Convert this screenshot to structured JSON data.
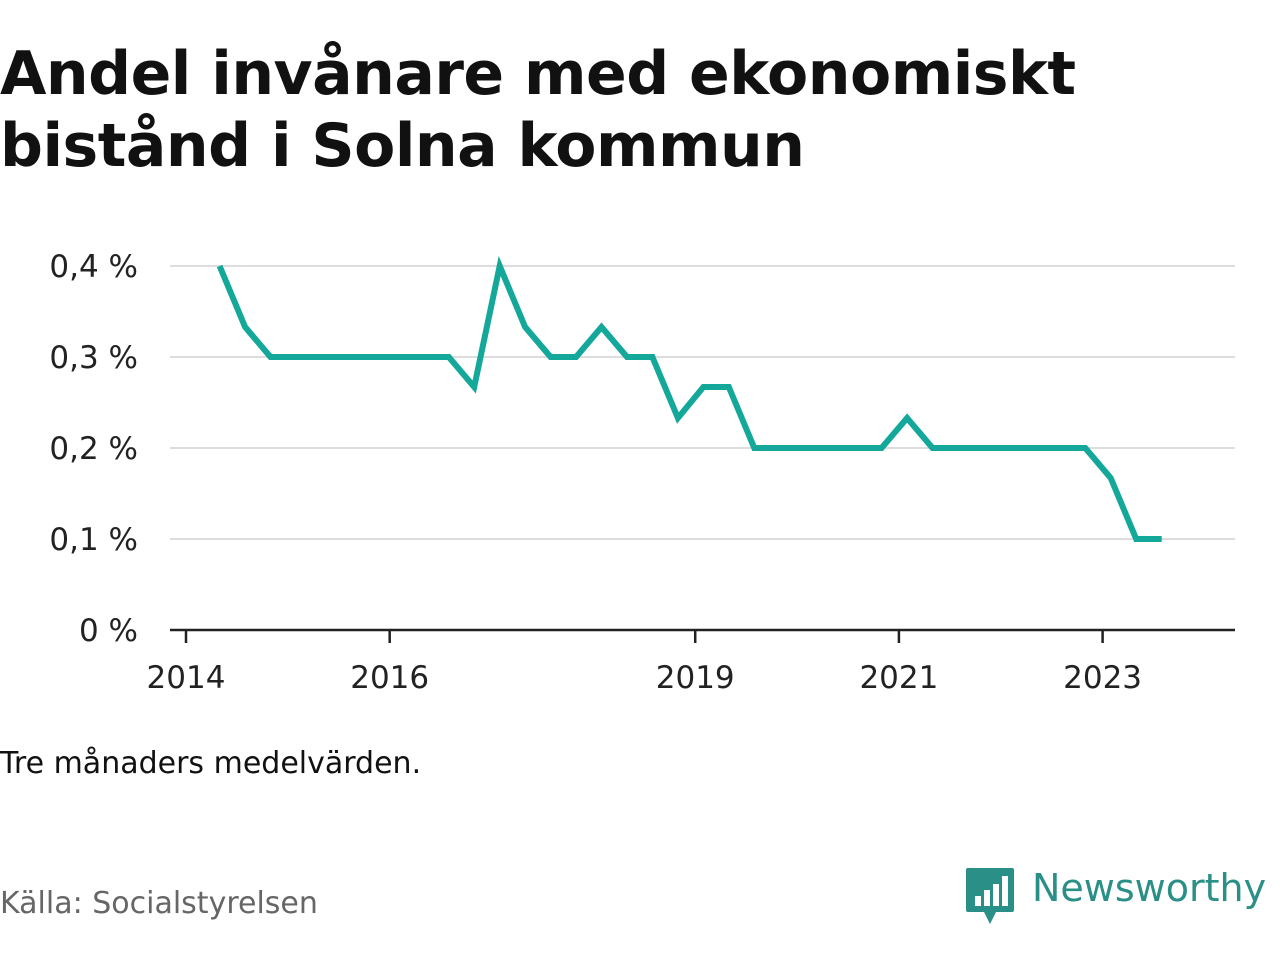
{
  "title": "Andel invånare med ekonomiskt bistånd i Solna kommun",
  "note": "Tre månaders medelvärden.",
  "source": "Källa: Socialstyrelsen",
  "brand": {
    "name": "Newsworthy",
    "icon": "newsworthy-logo-icon",
    "color": "#2a8f86"
  },
  "colors": {
    "line": "#14a89a",
    "grid": "#dddddd",
    "axis": "#222222"
  },
  "chart_data": {
    "type": "line",
    "title": "Andel invånare med ekonomiskt bistånd i Solna kommun",
    "xlabel": "",
    "ylabel": "",
    "xlim": [
      2014.0,
      2024.3
    ],
    "ylim": [
      0,
      0.4
    ],
    "grid": true,
    "x_ticks": [
      {
        "value": 2014.0,
        "label": "2014"
      },
      {
        "value": 2016.0,
        "label": "2016"
      },
      {
        "value": 2019.0,
        "label": "2019"
      },
      {
        "value": 2021.0,
        "label": "2021"
      },
      {
        "value": 2023.0,
        "label": "2023"
      }
    ],
    "y_ticks": [
      {
        "value": 0,
        "label": "0 %"
      },
      {
        "value": 0.1,
        "label": "0,1 %"
      },
      {
        "value": 0.2,
        "label": "0,2 %"
      },
      {
        "value": 0.3,
        "label": "0,3 %"
      },
      {
        "value": 0.4,
        "label": "0,4 %"
      }
    ],
    "series": [
      {
        "values": [
          [
            2014.33,
            0.4
          ],
          [
            2014.58,
            0.333
          ],
          [
            2014.83,
            0.3
          ],
          [
            2015.08,
            0.3
          ],
          [
            2015.33,
            0.3
          ],
          [
            2015.58,
            0.3
          ],
          [
            2015.83,
            0.3
          ],
          [
            2016.08,
            0.3
          ],
          [
            2016.33,
            0.3
          ],
          [
            2016.58,
            0.3
          ],
          [
            2016.83,
            0.267
          ],
          [
            2017.08,
            0.4
          ],
          [
            2017.33,
            0.333
          ],
          [
            2017.58,
            0.3
          ],
          [
            2017.83,
            0.3
          ],
          [
            2018.08,
            0.333
          ],
          [
            2018.33,
            0.3
          ],
          [
            2018.58,
            0.3
          ],
          [
            2018.83,
            0.233
          ],
          [
            2019.08,
            0.267
          ],
          [
            2019.33,
            0.267
          ],
          [
            2019.58,
            0.2
          ],
          [
            2019.83,
            0.2
          ],
          [
            2020.08,
            0.2
          ],
          [
            2020.33,
            0.2
          ],
          [
            2020.58,
            0.2
          ],
          [
            2020.83,
            0.2
          ],
          [
            2021.08,
            0.233
          ],
          [
            2021.33,
            0.2
          ],
          [
            2021.58,
            0.2
          ],
          [
            2021.83,
            0.2
          ],
          [
            2022.08,
            0.2
          ],
          [
            2022.33,
            0.2
          ],
          [
            2022.58,
            0.2
          ],
          [
            2022.83,
            0.2
          ],
          [
            2023.08,
            0.167
          ],
          [
            2023.33,
            0.1
          ],
          [
            2023.58,
            0.1
          ]
        ]
      }
    ]
  }
}
